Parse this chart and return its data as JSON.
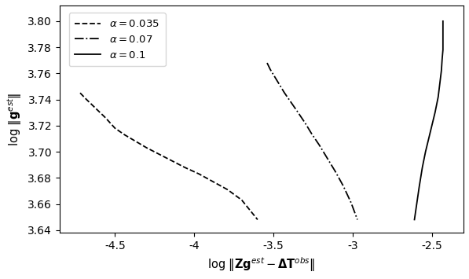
{
  "title": "",
  "xlabel": "log $\\| \\mathbf{Zg}^{est} - \\mathbf{\\Delta T}^{obs} \\|$",
  "ylabel": "log $\\| \\mathbf{g}^{est} \\|$",
  "xlim": [
    -4.85,
    -2.3
  ],
  "ylim": [
    3.638,
    3.812
  ],
  "curves": [
    {
      "label": "$\\alpha = 0.035$",
      "linestyle": "--",
      "color": "black",
      "x": [
        -4.72,
        -4.68,
        -4.62,
        -4.56,
        -4.5,
        -4.44,
        -4.37,
        -4.3,
        -4.22,
        -4.14,
        -4.06,
        -3.97,
        -3.88,
        -3.79,
        -3.7,
        -3.6
      ],
      "y": [
        3.745,
        3.74,
        3.733,
        3.726,
        3.718,
        3.713,
        3.708,
        3.703,
        3.698,
        3.693,
        3.688,
        3.683,
        3.677,
        3.671,
        3.663,
        3.648
      ]
    },
    {
      "label": "$\\alpha = 0.07$",
      "linestyle": "-.",
      "color": "black",
      "x": [
        -3.54,
        -3.52,
        -3.49,
        -3.46,
        -3.43,
        -3.39,
        -3.35,
        -3.3,
        -3.26,
        -3.21,
        -3.16,
        -3.11,
        -3.06,
        -3.01,
        -2.97
      ],
      "y": [
        3.768,
        3.763,
        3.757,
        3.751,
        3.745,
        3.738,
        3.731,
        3.722,
        3.714,
        3.705,
        3.695,
        3.685,
        3.674,
        3.661,
        3.648
      ]
    },
    {
      "label": "$\\alpha = 0.1$",
      "linestyle": "-",
      "color": "black",
      "x": [
        -2.43,
        -2.43,
        -2.43,
        -2.43,
        -2.43,
        -2.435,
        -2.44,
        -2.45,
        -2.46,
        -2.48,
        -2.5,
        -2.52,
        -2.54,
        -2.56,
        -2.58,
        -2.61
      ],
      "y": [
        3.8,
        3.796,
        3.791,
        3.785,
        3.778,
        3.771,
        3.762,
        3.752,
        3.742,
        3.73,
        3.72,
        3.71,
        3.7,
        3.688,
        3.673,
        3.648
      ]
    }
  ],
  "xticks": [
    -4.5,
    -4.0,
    -3.5,
    -3.0,
    -2.5
  ],
  "yticks": [
    3.64,
    3.66,
    3.68,
    3.7,
    3.72,
    3.74,
    3.76,
    3.78,
    3.8
  ],
  "background_color": "white"
}
